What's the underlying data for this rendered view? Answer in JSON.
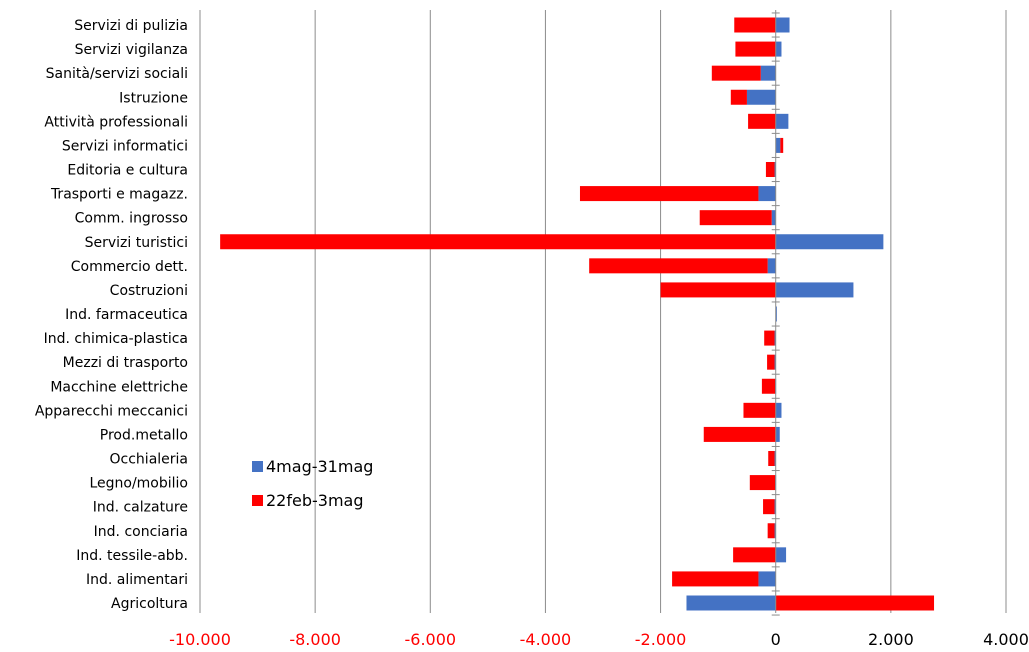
{
  "chart_data": {
    "type": "bar",
    "orientation": "horizontal",
    "stacked": true,
    "title": "",
    "xlabel": "",
    "ylabel": "",
    "xlim": [
      -10000,
      4000
    ],
    "x_ticks": [
      -10000,
      -8000,
      -6000,
      -4000,
      -2000,
      0,
      2000,
      4000
    ],
    "x_tick_labels": [
      "-10.000",
      "-8.000",
      "-6.000",
      "-4.000",
      "-2.000",
      "0",
      "2.000",
      "4.000"
    ],
    "grid": "vertical",
    "legend_position": "left, lower middle",
    "categories": [
      "Servizi di pulizia",
      "Servizi vigilanza",
      "Sanità/servizi sociali",
      "Istruzione",
      "Attività professionali",
      "Servizi informatici",
      "Editoria e cultura",
      "Trasporti e magazz.",
      "Comm. ingrosso",
      "Servizi turistici",
      "Commercio dett.",
      "Costruzioni",
      "Ind. farmaceutica",
      "Ind. chimica-plastica",
      "Mezzi di trasporto",
      "Macchine elettriche",
      "Apparecchi meccanici",
      "Prod.metallo",
      "Occhialeria",
      "Legno/mobilio",
      "Ind. calzature",
      "Ind. conciaria",
      "Ind. tessile-abb.",
      "Ind. alimentari",
      "Agricoltura"
    ],
    "series": [
      {
        "name": "4mag-31mag",
        "color": "#4472C4",
        "values": [
          240,
          100,
          -260,
          -500,
          220,
          80,
          -20,
          -300,
          -70,
          1870,
          -140,
          1350,
          20,
          -20,
          -20,
          -10,
          100,
          70,
          -20,
          -10,
          -20,
          -20,
          180,
          -300,
          -1550
        ]
      },
      {
        "name": "22feb-3mag",
        "color": "#FF0000",
        "values": [
          -720,
          -700,
          -850,
          -280,
          -480,
          50,
          -150,
          -3100,
          -1250,
          -9650,
          -3100,
          -2000,
          0,
          -180,
          -130,
          -230,
          -560,
          -1250,
          -110,
          -440,
          -200,
          -120,
          -740,
          -1500,
          2750
        ]
      }
    ]
  }
}
